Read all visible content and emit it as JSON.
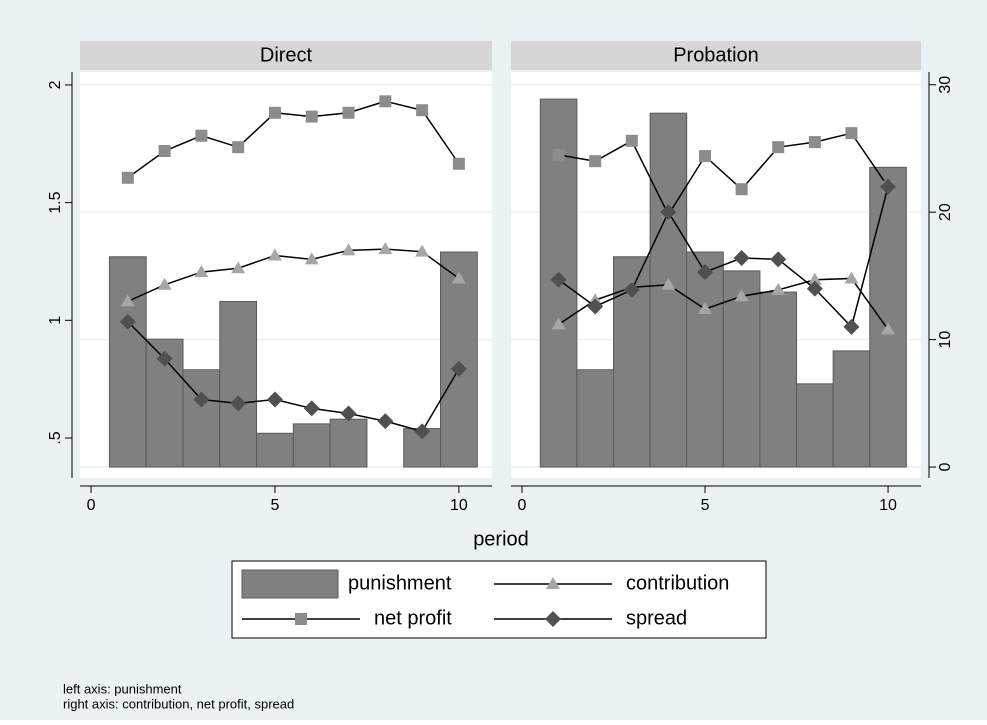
{
  "chart_data": {
    "type": "combo",
    "x_label": "period",
    "x": [
      1,
      2,
      3,
      4,
      5,
      6,
      7,
      8,
      9,
      10
    ],
    "xlim": [
      -0.3,
      10.9
    ],
    "xticks": [
      0,
      5,
      10
    ],
    "ylim": [
      0.33,
      2.055
    ],
    "yticks": [
      {
        "value": 0.5,
        "label": ".5"
      },
      1,
      1.5,
      2
    ],
    "y2lim": [
      -0.86,
      31
    ],
    "y2ticks": [
      0,
      10,
      20,
      30
    ],
    "grid": "y2",
    "legend": "bottom",
    "series": [
      {
        "name": "punishment",
        "kind": "bar",
        "axis": "y",
        "color": "#808080",
        "marker": "none"
      },
      {
        "name": "contribution",
        "kind": "line",
        "axis": "y2",
        "color": "#a6a6a6",
        "marker": "triangle"
      },
      {
        "name": "net profit",
        "kind": "line",
        "axis": "y2",
        "color": "#8c8c8c",
        "marker": "square"
      },
      {
        "name": "spread",
        "kind": "line",
        "axis": "y2",
        "color": "#505050",
        "marker": "diamond"
      }
    ],
    "panels": [
      {
        "title": "Direct",
        "series": [
          {
            "values": [
              1.27,
              0.92,
              0.79,
              1.08,
              0.52,
              0.56,
              0.58,
              null,
              0.54,
              1.29
            ]
          },
          {
            "values": [
              13.0,
              14.3,
              15.3,
              15.6,
              16.6,
              16.3,
              17.0,
              17.1,
              16.9,
              14.8
            ]
          },
          {
            "values": [
              22.7,
              24.8,
              26.0,
              25.1,
              27.8,
              27.5,
              27.8,
              28.7,
              28.0,
              23.8
            ]
          },
          {
            "values": [
              11.4,
              8.5,
              5.3,
              5.0,
              5.3,
              4.6,
              4.2,
              3.6,
              2.8,
              7.7
            ]
          }
        ]
      },
      {
        "title": "Probation",
        "series": [
          {
            "values": [
              1.94,
              0.79,
              1.27,
              1.88,
              1.29,
              1.21,
              1.12,
              0.73,
              0.87,
              1.65
            ]
          },
          {
            "values": [
              11.2,
              13.1,
              14.1,
              14.3,
              12.4,
              13.4,
              13.9,
              14.7,
              14.8,
              10.8
            ]
          },
          {
            "values": [
              24.5,
              24.0,
              25.6,
              19.8,
              24.4,
              21.8,
              25.1,
              25.5,
              26.2,
              22.0
            ]
          },
          {
            "values": [
              14.7,
              12.6,
              13.9,
              20.0,
              15.3,
              16.4,
              16.3,
              14.0,
              11.0,
              22.0
            ]
          }
        ]
      }
    ],
    "notes": [
      "left axis: punishment",
      "right axis: contribution, net profit, spread"
    ]
  }
}
